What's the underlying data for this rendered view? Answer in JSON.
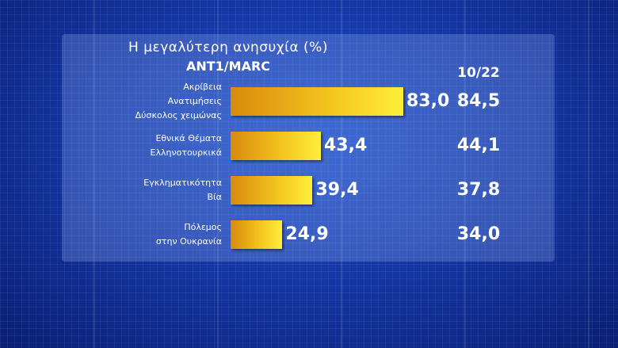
{
  "chart_data": {
    "type": "bar",
    "orientation": "horizontal",
    "title": "Η μεγαλύτερη ανησυχία (%)",
    "subtitle": "ANT1/MARC",
    "compare_label": "10/22",
    "categories": [
      [
        "Ακρίβεια",
        "Ανατιμήσεις",
        "Δύσκολος χειμώνας"
      ],
      [
        "Εθνικά Θέματα",
        "Ελληνοτουρκικά"
      ],
      [
        "Εγκληματικότητα",
        "Βία"
      ],
      [
        "Πόλεμος",
        "στην Ουκρανία"
      ]
    ],
    "values": [
      83.0,
      43.4,
      39.4,
      24.9
    ],
    "value_labels": [
      "83,0",
      "43,4",
      "39,4",
      "24,9"
    ],
    "compare_values": [
      84.5,
      44.1,
      37.8,
      34.0
    ],
    "compare_labels": [
      "84,5",
      "44,1",
      "37,8",
      "34,0"
    ],
    "xlim": [
      0,
      100
    ],
    "bar_color_start": "#d88a0e",
    "bar_color_end": "#ffee3a"
  }
}
